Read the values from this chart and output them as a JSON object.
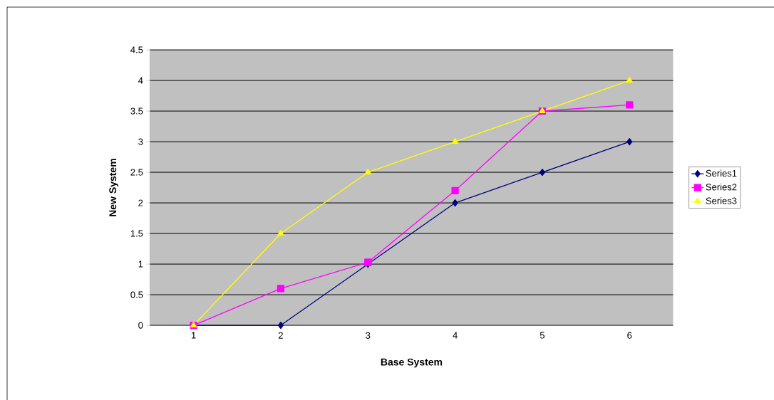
{
  "chart_data": {
    "type": "line",
    "xlabel": "Base System",
    "ylabel": "New System",
    "categories": [
      "1",
      "2",
      "3",
      "4",
      "5",
      "6"
    ],
    "series": [
      {
        "name": "Series1",
        "color": "#000080",
        "marker": "diamond",
        "values": [
          0,
          0,
          1,
          2,
          2.5,
          3
        ]
      },
      {
        "name": "Series2",
        "color": "#ff00ff",
        "marker": "square",
        "values": [
          0,
          0.6,
          1.03,
          2.2,
          3.5,
          3.6
        ]
      },
      {
        "name": "Series3",
        "color": "#ffff00",
        "marker": "triangle",
        "values": [
          0,
          1.5,
          2.5,
          3,
          3.5,
          4
        ]
      }
    ],
    "ylim": [
      0,
      4.5
    ],
    "yticks": [
      0,
      0.5,
      1,
      1.5,
      2,
      2.5,
      3,
      3.5,
      4,
      4.5
    ],
    "grid": "y",
    "legend": "right",
    "line_style": "solid"
  }
}
